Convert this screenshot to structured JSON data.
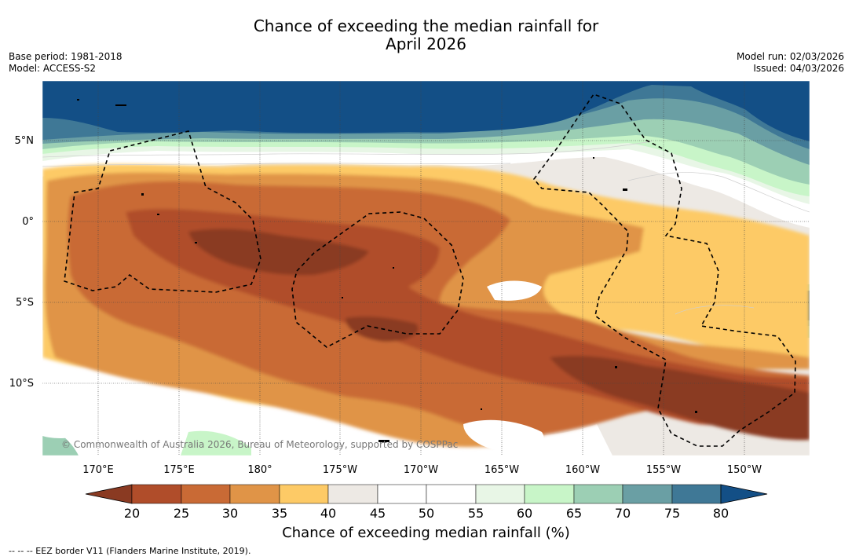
{
  "header": {
    "title_line1": "Chance of exceeding the median rainfall for",
    "title_line2": "April 2026",
    "base_period": "Base period: 1981-2018",
    "model": "Model: ACCESS-S2",
    "model_run": "Model run: 02/03/2026",
    "issued": "Issued: 04/03/2026"
  },
  "map": {
    "lat_labels": [
      "5°N",
      "0°",
      "5°S",
      "10°S"
    ],
    "lon_labels": [
      "170°E",
      "175°E",
      "180°",
      "175°W",
      "170°W",
      "165°W",
      "160°W",
      "155°W",
      "150°W"
    ],
    "copyright": "© Commonwealth of Australia 2026, Bureau of Meteorology, supported by COSPPac"
  },
  "colorbar": {
    "ticks": [
      "20",
      "25",
      "30",
      "35",
      "40",
      "45",
      "50",
      "55",
      "60",
      "65",
      "70",
      "75",
      "80"
    ],
    "label": "Chance of exceeding median rainfall (%)",
    "colors": {
      "under": "#8a3a22",
      "c20_25": "#b04d2a",
      "c25_30": "#c96a35",
      "c30_35": "#e09447",
      "c35_40": "#fdca66",
      "c40_45": "#ede9e4",
      "c45_50": "#ffffff",
      "c50_55": "#ffffff",
      "c55_60": "#e8f6e6",
      "c60_65": "#c8f5c8",
      "c65_70": "#9ccfb4",
      "c70_75": "#6a9fa4",
      "c75_80": "#3f7896",
      "over": "#134f86"
    }
  },
  "footer": {
    "legend": "--  --  -- EEZ border V11 (Flanders Marine Institute, 2019)."
  }
}
